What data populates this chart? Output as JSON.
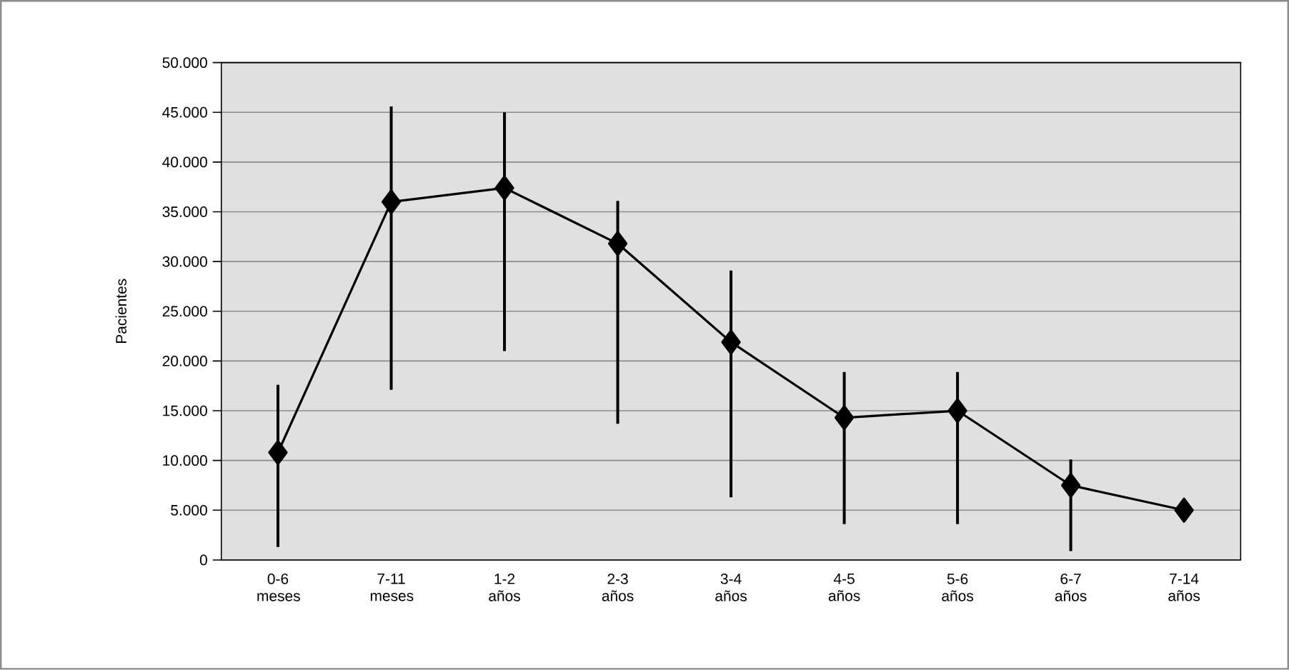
{
  "chart_data": {
    "type": "line",
    "ylabel": "Pacientes",
    "categories": [
      "0-6 meses",
      "7-11 meses",
      "1-2 años",
      "2-3 años",
      "3-4 años",
      "4-5 años",
      "5-6 años",
      "6-7 años",
      "7-14 años"
    ],
    "values": [
      10800,
      36000,
      37400,
      31800,
      21900,
      14300,
      15000,
      7500,
      5000
    ],
    "errors": [
      [
        1300,
        17600
      ],
      [
        17100,
        45600
      ],
      [
        21000,
        45000
      ],
      [
        13700,
        36100
      ],
      [
        6300,
        29100
      ],
      [
        3600,
        18900
      ],
      [
        3600,
        18900
      ],
      [
        900,
        10100
      ],
      null
    ],
    "color": "#000000",
    "marker": "diamond",
    "line_style": "solid",
    "grid": "y",
    "ylim": [
      0,
      50000
    ],
    "yticks": [
      0,
      {
        "value": 5000,
        "label": "5.000"
      },
      {
        "value": 10000,
        "label": "10.000"
      },
      {
        "value": 15000,
        "label": "15.000"
      },
      {
        "value": 20000,
        "label": "20.000"
      },
      {
        "value": 25000,
        "label": "25.000"
      },
      {
        "value": 30000,
        "label": "30.000"
      },
      {
        "value": 35000,
        "label": "35.000"
      },
      {
        "value": 40000,
        "label": "40.000"
      },
      {
        "value": 45000,
        "label": "45.000"
      },
      {
        "value": 50000,
        "label": "50.000"
      }
    ]
  }
}
